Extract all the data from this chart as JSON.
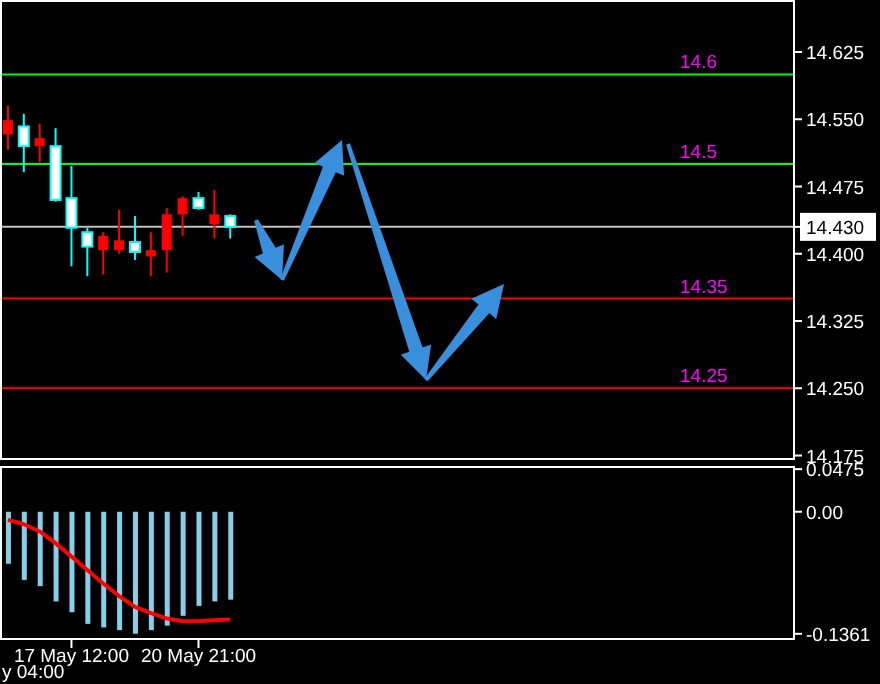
{
  "chart_data": [
    {
      "type": "candlestick",
      "categories": [
        null,
        null,
        null,
        null,
        null,
        null,
        null,
        null,
        null,
        null,
        null,
        null,
        null,
        null,
        null,
        null,
        null,
        null,
        null,
        null,
        null,
        null,
        null,
        null,
        null,
        null,
        null,
        null,
        null,
        null,
        null,
        null,
        null,
        null,
        null,
        null,
        null,
        null,
        null,
        null,
        null,
        null,
        null,
        null,
        null,
        null,
        null,
        null,
        null,
        null
      ],
      "ohlc": [
        [
          14.533,
          14.565,
          14.516,
          14.549
        ],
        [
          14.542,
          14.556,
          14.491,
          14.52
        ],
        [
          14.52,
          14.545,
          14.502,
          14.529
        ],
        [
          14.52,
          14.54,
          14.458,
          14.46
        ],
        [
          14.462,
          14.498,
          14.386,
          14.429
        ],
        [
          14.424,
          14.429,
          14.375,
          14.408
        ],
        [
          14.404,
          14.424,
          14.377,
          14.42
        ],
        [
          14.404,
          14.449,
          14.4,
          14.415
        ],
        [
          14.413,
          14.442,
          14.393,
          14.402
        ],
        [
          14.397,
          14.424,
          14.375,
          14.404
        ],
        [
          14.404,
          14.451,
          14.379,
          14.444
        ],
        [
          14.444,
          14.464,
          14.42,
          14.462
        ],
        [
          14.462,
          14.469,
          14.449,
          14.451
        ],
        [
          14.433,
          14.471,
          14.417,
          14.444
        ],
        [
          14.442,
          14.444,
          14.417,
          14.43
        ],
        null,
        null,
        null,
        null,
        null,
        null,
        null,
        null,
        null,
        null,
        null,
        null,
        null,
        null,
        null,
        null,
        null,
        null,
        null,
        null,
        null,
        null,
        null,
        null,
        null,
        null,
        null,
        null,
        null,
        null,
        null,
        null,
        null,
        null,
        null
      ],
      "colors": [
        "#ff0000",
        "#00ffff",
        "#ff0000",
        "#00ffff",
        "#00ffff",
        "#00ffff",
        "#ff0000",
        "#ff0000",
        "#00ffff",
        "#ff0000",
        "#ff0000",
        "#ff0000",
        "#00ffff",
        "#ff0000",
        "#00ffff",
        null,
        null,
        null,
        null,
        null,
        null,
        null,
        null,
        null,
        null,
        null,
        null,
        null,
        null,
        null,
        null,
        null,
        null,
        null,
        null,
        null,
        null,
        null,
        null,
        null,
        null,
        null,
        null,
        null,
        null,
        null,
        null,
        null,
        null,
        null
      ],
      "ylim": [
        14.17,
        14.683
      ],
      "yticks": [
        {
          "value": 14.625,
          "label": "14.625"
        },
        {
          "value": 14.55,
          "label": "14.550"
        },
        {
          "value": 14.475,
          "label": "14.475"
        },
        {
          "value": 14.43,
          "label": "14.430"
        },
        {
          "value": 14.4,
          "label": "14.400"
        },
        {
          "value": 14.325,
          "label": "14.325"
        },
        {
          "value": 14.25,
          "label": "14.250"
        },
        {
          "value": 14.175,
          "label": "14.175"
        }
      ],
      "ref_lines": [
        {
          "axis": "y",
          "value": 14.6,
          "label": "14.6",
          "color": "#00ff00"
        },
        {
          "axis": "y",
          "value": 14.5,
          "label": "14.5",
          "color": "#00ff00"
        },
        {
          "axis": "y",
          "value": 14.43,
          "color": "#c0c0c0"
        },
        {
          "axis": "y",
          "value": 14.35,
          "label": "14.35",
          "color": "#ff0000"
        },
        {
          "axis": "y",
          "value": 14.25,
          "label": "14.25",
          "color": "#ff0000"
        }
      ],
      "tick_labels": "y"
    },
    {
      "type": "bar",
      "categories": [
        null,
        null,
        null,
        null,
        "17 May 12:00",
        null,
        null,
        null,
        null,
        null,
        null,
        null,
        "20 May 21:00",
        null,
        null,
        null,
        null,
        null,
        null,
        null,
        null,
        null,
        null,
        null,
        null,
        null,
        null,
        null,
        null,
        null,
        null,
        null,
        null,
        null,
        null,
        null,
        null,
        null,
        null,
        null,
        null,
        null,
        null,
        null,
        null,
        null,
        null,
        null,
        null,
        null
      ],
      "series": [
        {
          "type": "bar",
          "color": "#87ceeb",
          "values": [
            -0.058,
            -0.076,
            -0.083,
            -0.1,
            -0.112,
            -0.125,
            -0.129,
            -0.132,
            -0.136,
            -0.132,
            -0.127,
            -0.116,
            -0.105,
            -0.1,
            -0.098,
            null,
            null,
            null,
            null,
            null,
            null,
            null,
            null,
            null,
            null,
            null,
            null,
            null,
            null,
            null,
            null,
            null,
            null,
            null,
            null,
            null,
            null,
            null,
            null,
            null,
            null,
            null,
            null,
            null,
            null,
            null,
            null,
            null,
            null,
            null
          ]
        },
        {
          "type": "line",
          "color": "#ff0000",
          "values": [
            -0.009,
            -0.014,
            -0.022,
            -0.035,
            -0.05,
            -0.065,
            -0.08,
            -0.094,
            -0.106,
            -0.113,
            -0.119,
            -0.122,
            -0.122,
            -0.121,
            -0.12,
            null,
            null,
            null,
            null,
            null,
            null,
            null,
            null,
            null,
            null,
            null,
            null,
            null,
            null,
            null,
            null,
            null,
            null,
            null,
            null,
            null,
            null,
            null,
            null,
            null,
            null,
            null,
            null,
            null,
            null,
            null,
            null,
            null,
            null,
            null
          ]
        }
      ],
      "ylim": [
        -0.143,
        0.051
      ],
      "yticks": [
        {
          "value": 0.0475,
          "label": "0.0475"
        },
        {
          "value": 0,
          "label": "0.00"
        },
        {
          "value": -0.1361,
          "label": "-0.1361"
        }
      ],
      "annotations": [
        "y 04:00"
      ]
    }
  ]
}
